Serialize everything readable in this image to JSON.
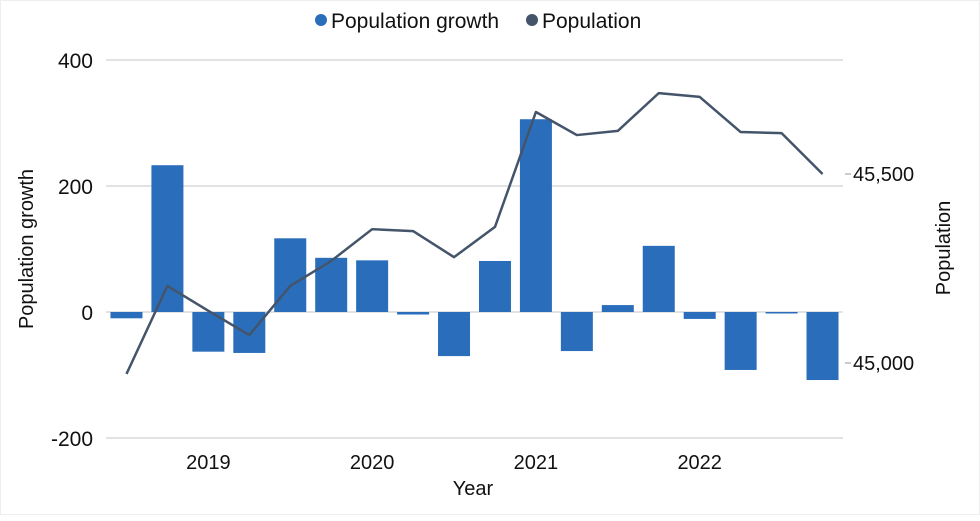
{
  "chart_data": {
    "type": "bar+line",
    "xlabel": "Year",
    "ylabel_left": "Population growth",
    "ylabel_right": "Population",
    "x_tick_labels": [
      {
        "index": 2,
        "label": "2019"
      },
      {
        "index": 6,
        "label": "2020"
      },
      {
        "index": 10,
        "label": "2021"
      },
      {
        "index": 14,
        "label": "2022"
      }
    ],
    "y_left": {
      "lim": [
        -200,
        400
      ],
      "ticks": [
        400,
        200,
        0,
        -200
      ],
      "tick_labels": [
        "400",
        "200",
        "0",
        "-200"
      ]
    },
    "y_right": {
      "lim": [
        44870,
        46460
      ],
      "ticks": [
        45500,
        45000
      ],
      "tick_labels": [
        "45,500",
        "45,000"
      ]
    },
    "grid": true,
    "legend": {
      "position": "top",
      "entries": [
        "Population growth",
        "Population"
      ]
    },
    "series": [
      {
        "name": "Population growth",
        "type": "bar",
        "axis": "left",
        "color": "#2a6ebb",
        "values": [
          -10,
          233,
          -63,
          -65,
          117,
          86,
          82,
          -4,
          -70,
          81,
          306,
          -62,
          11,
          105,
          -11,
          -92,
          -2,
          -108
        ]
      },
      {
        "name": "Population",
        "type": "line",
        "axis": "right",
        "color": "#44546a",
        "values": [
          44971,
          45204,
          45138,
          45074,
          45204,
          45270,
          45354,
          45349,
          45280,
          45360,
          45664,
          45603,
          45614,
          45714,
          45704,
          45611,
          45608,
          45500
        ]
      }
    ]
  }
}
